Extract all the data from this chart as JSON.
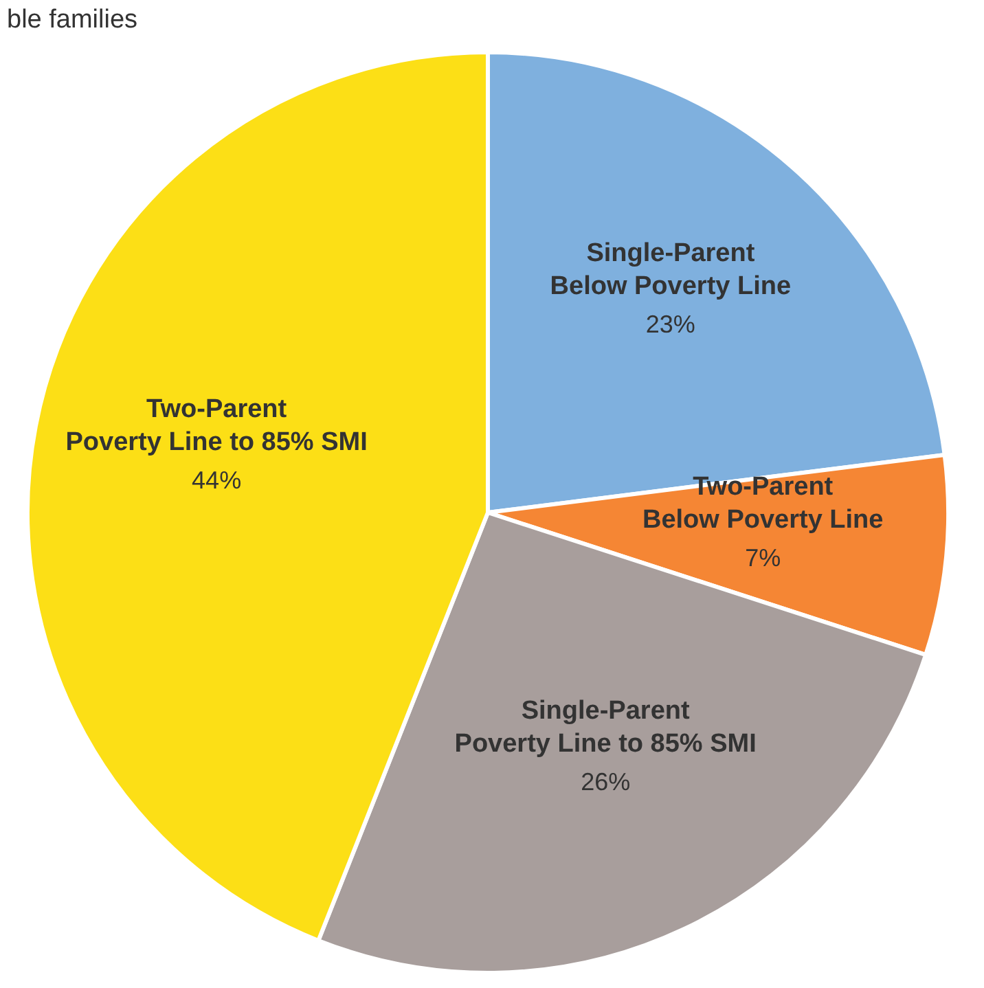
{
  "chart_data": {
    "type": "pie",
    "title": "ble families",
    "categories": [
      "Single-Parent\nBelow Poverty Line",
      "Two-Parent\nBelow Poverty Line",
      "Single-Parent\nPoverty Line to 85% SMI",
      "Two-Parent\nPoverty Line to 85% SMI"
    ],
    "values": [
      23,
      7,
      26,
      44
    ],
    "value_labels": [
      "23%",
      "7%",
      "26%",
      "44%"
    ],
    "colors": [
      "#7fb0de",
      "#f58634",
      "#a89e9c",
      "#fcdf16"
    ],
    "legend": false
  }
}
